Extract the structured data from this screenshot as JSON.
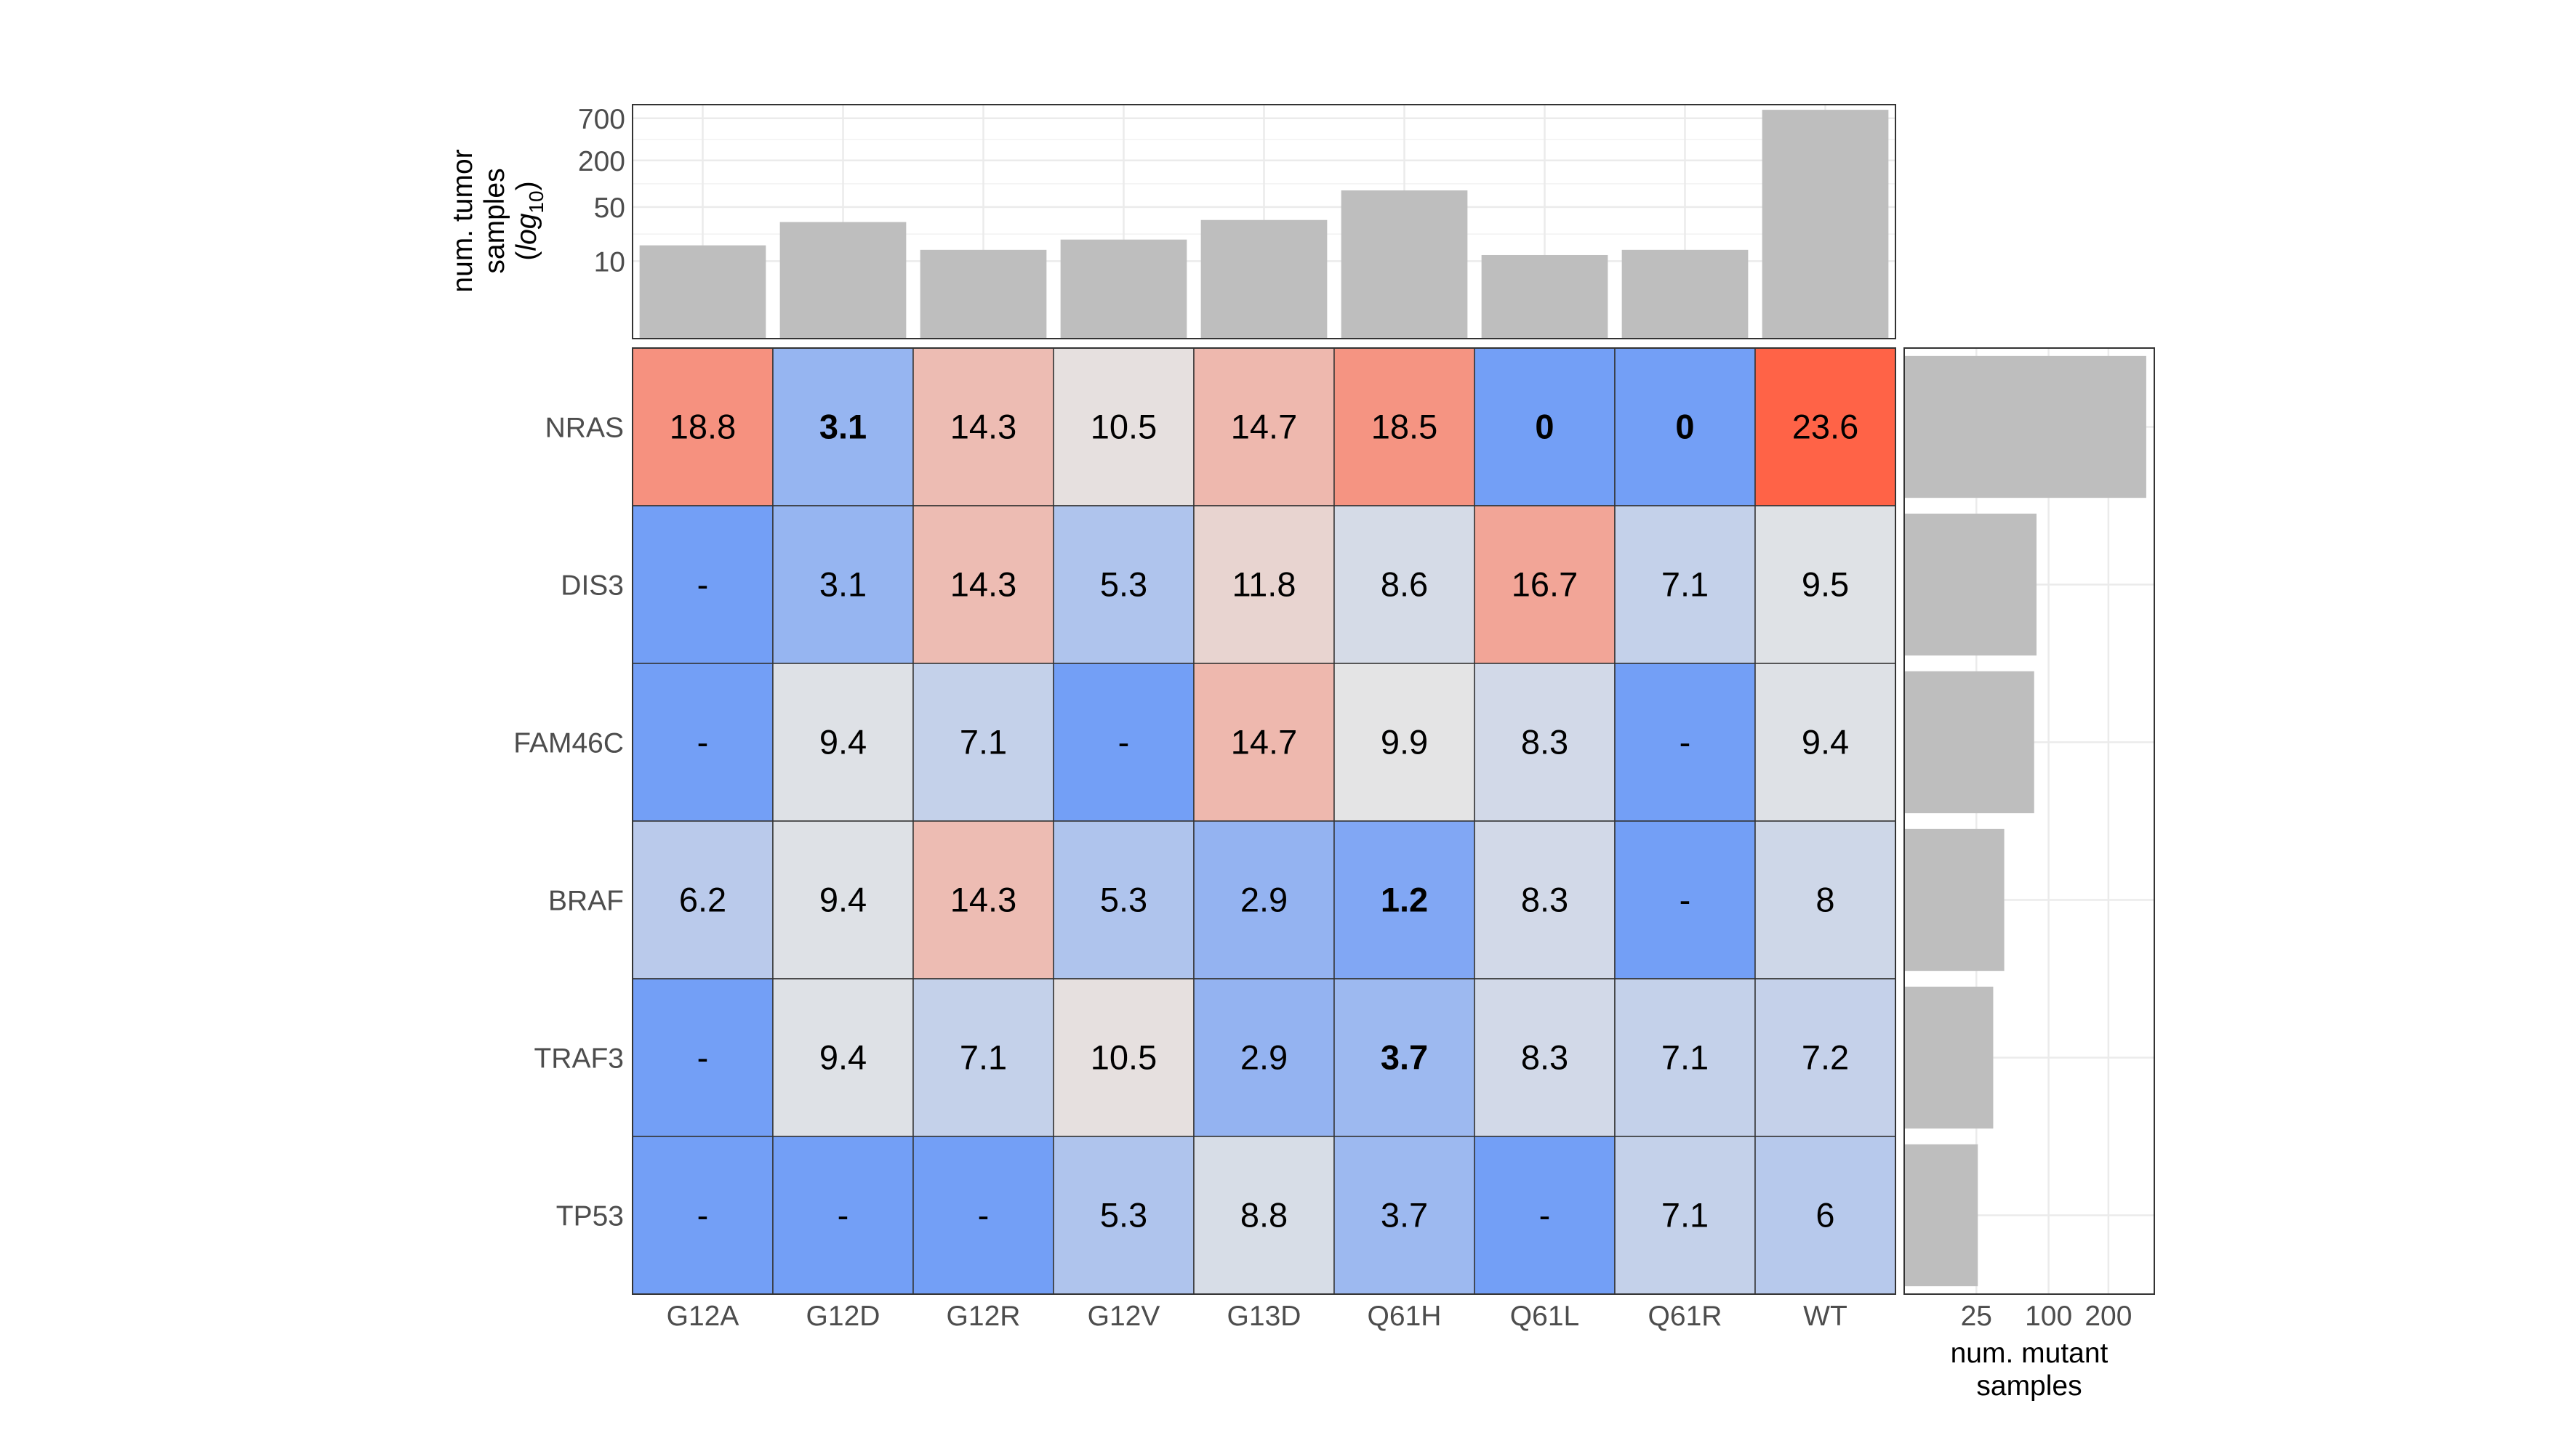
{
  "chart_data": {
    "type": "heatmap",
    "columns": [
      "G12A",
      "G12D",
      "G12R",
      "G12V",
      "G13D",
      "Q61H",
      "Q61L",
      "Q61R",
      "WT"
    ],
    "rows": [
      "NRAS",
      "DIS3",
      "FAM46C",
      "BRAF",
      "TRAF3",
      "TP53"
    ],
    "values": [
      [
        18.8,
        3.1,
        14.3,
        10.5,
        14.7,
        18.5,
        0,
        0,
        23.6
      ],
      [
        null,
        3.1,
        14.3,
        5.3,
        11.8,
        8.6,
        16.7,
        7.1,
        9.5
      ],
      [
        null,
        9.4,
        7.1,
        null,
        14.7,
        9.9,
        8.3,
        null,
        9.4
      ],
      [
        6.2,
        9.4,
        14.3,
        5.3,
        2.9,
        1.2,
        8.3,
        null,
        8
      ],
      [
        null,
        9.4,
        7.1,
        10.5,
        2.9,
        3.7,
        8.3,
        7.1,
        7.2
      ],
      [
        null,
        null,
        null,
        5.3,
        8.8,
        3.7,
        null,
        7.1,
        6
      ]
    ],
    "labels": [
      [
        "18.8",
        "3.1",
        "14.3",
        "10.5",
        "14.7",
        "18.5",
        "0",
        "0",
        "23.6"
      ],
      [
        "-",
        "3.1",
        "14.3",
        "5.3",
        "11.8",
        "8.6",
        "16.7",
        "7.1",
        "9.5"
      ],
      [
        "-",
        "9.4",
        "7.1",
        "-",
        "14.7",
        "9.9",
        "8.3",
        "-",
        "9.4"
      ],
      [
        "6.2",
        "9.4",
        "14.3",
        "5.3",
        "2.9",
        "1.2",
        "8.3",
        "-",
        "8"
      ],
      [
        "-",
        "9.4",
        "7.1",
        "10.5",
        "2.9",
        "3.7",
        "8.3",
        "7.1",
        "7.2"
      ],
      [
        "-",
        "-",
        "-",
        "5.3",
        "8.8",
        "3.7",
        "-",
        "7.1",
        "6"
      ]
    ],
    "bold": [
      [
        false,
        true,
        false,
        false,
        false,
        false,
        true,
        true,
        false
      ],
      [
        false,
        false,
        false,
        false,
        false,
        false,
        false,
        false,
        false
      ],
      [
        false,
        false,
        false,
        false,
        false,
        false,
        false,
        false,
        false
      ],
      [
        false,
        false,
        false,
        false,
        false,
        true,
        false,
        false,
        false
      ],
      [
        false,
        false,
        false,
        false,
        false,
        true,
        false,
        false,
        false
      ],
      [
        false,
        false,
        false,
        false,
        false,
        false,
        false,
        false,
        false
      ]
    ],
    "color_scale": {
      "low": "#739ff6",
      "mid": "#e5e5e5",
      "high": "#ff6347",
      "min": 0,
      "mid_value": 10,
      "max": 23.6,
      "missing": "#739ff6"
    },
    "top_bars": {
      "ylabel_line1": "num. tumor",
      "ylabel_line2": "samples",
      "ylabel_line3_pre": "(",
      "ylabel_line3_log": "log",
      "ylabel_line3_sub": "10",
      "ylabel_line3_post": ")",
      "scale": "log10",
      "ticks": [
        10,
        50,
        200,
        700
      ],
      "tick_labels": [
        "10",
        "50",
        "200",
        "700"
      ],
      "ylim": [
        1,
        1050
      ],
      "values": [
        16,
        32,
        14,
        19,
        34,
        82,
        12,
        14,
        900
      ],
      "bar_color": "#bebebe"
    },
    "right_bars": {
      "xlabel_line1": "num. mutant",
      "xlabel_line2": "samples",
      "scale": "sqrt",
      "ticks": [
        25,
        100,
        200
      ],
      "tick_labels": [
        "25",
        "100",
        "200"
      ],
      "xlim": [
        0,
        300
      ],
      "values": [
        281,
        84,
        81,
        48,
        38,
        26
      ],
      "bar_color": "#bebebe"
    },
    "grid": true
  }
}
